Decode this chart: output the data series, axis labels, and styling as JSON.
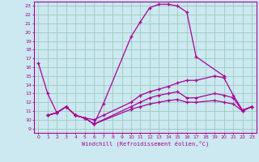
{
  "xlabel": "Windchill (Refroidissement éolien,°C)",
  "bg_color": "#cce8f0",
  "grid_color": "#99ccbb",
  "line_color": "#aa0099",
  "spine_color": "#aa0099",
  "xlim": [
    -0.5,
    23.5
  ],
  "ylim": [
    8.5,
    23.5
  ],
  "xticks": [
    0,
    1,
    2,
    3,
    4,
    5,
    6,
    7,
    8,
    9,
    10,
    11,
    12,
    13,
    14,
    15,
    16,
    17,
    18,
    19,
    20,
    21,
    22,
    23
  ],
  "yticks": [
    9,
    10,
    11,
    12,
    13,
    14,
    15,
    16,
    17,
    18,
    19,
    20,
    21,
    22,
    23
  ],
  "curve1_x": [
    0,
    1,
    2,
    3,
    4,
    5,
    6,
    7,
    10,
    11,
    12,
    13,
    14,
    15,
    16,
    17,
    20
  ],
  "curve1_y": [
    16.5,
    13.0,
    10.8,
    11.5,
    10.5,
    10.2,
    9.5,
    11.8,
    19.5,
    21.2,
    22.8,
    23.2,
    23.2,
    23.0,
    22.3,
    17.2,
    15.0
  ],
  "curve2_x": [
    1,
    2,
    3,
    4,
    5,
    6,
    7,
    10,
    11,
    12,
    13,
    14,
    15,
    16,
    17,
    19,
    20,
    21,
    22,
    23
  ],
  "curve2_y": [
    10.5,
    10.8,
    11.5,
    10.5,
    10.2,
    10.0,
    10.5,
    12.0,
    12.8,
    13.2,
    13.5,
    13.8,
    14.2,
    14.5,
    14.5,
    15.0,
    14.8,
    12.8,
    11.1,
    11.5
  ],
  "curve3_x": [
    1,
    2,
    3,
    4,
    5,
    6,
    10,
    11,
    12,
    13,
    14,
    15,
    16,
    17,
    19,
    20,
    21,
    22,
    23
  ],
  "curve3_y": [
    10.5,
    10.8,
    11.5,
    10.5,
    10.2,
    9.5,
    11.5,
    12.0,
    12.5,
    12.8,
    13.0,
    13.2,
    12.5,
    12.5,
    13.0,
    12.8,
    12.5,
    11.0,
    11.5
  ],
  "curve4_x": [
    1,
    2,
    3,
    4,
    5,
    6,
    10,
    11,
    12,
    13,
    14,
    15,
    16,
    17,
    19,
    20,
    21,
    22,
    23
  ],
  "curve4_y": [
    10.5,
    10.8,
    11.5,
    10.5,
    10.2,
    9.5,
    11.2,
    11.5,
    11.8,
    12.0,
    12.2,
    12.3,
    12.0,
    12.0,
    12.2,
    12.0,
    11.8,
    11.0,
    11.5
  ]
}
